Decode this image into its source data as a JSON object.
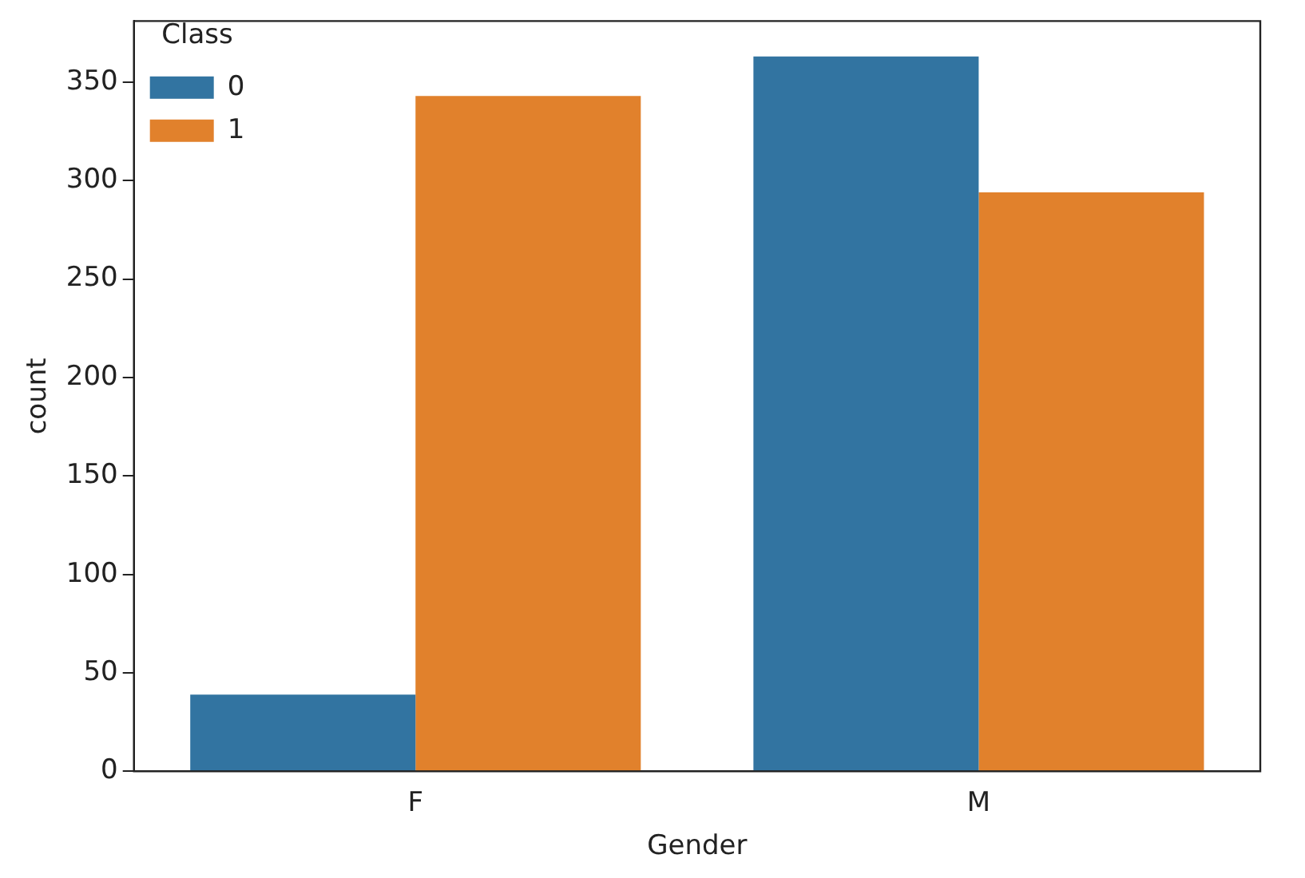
{
  "chart_data": {
    "type": "bar",
    "xlabel": "Gender",
    "ylabel": "count",
    "legend_title": "Class",
    "categories": [
      "F",
      "M"
    ],
    "series": [
      {
        "name": "0",
        "color": "#3274a1",
        "values": [
          39,
          363
        ]
      },
      {
        "name": "1",
        "color": "#e1812c",
        "values": [
          343,
          294
        ]
      }
    ],
    "ylim": [
      0,
      381
    ],
    "yticks": [
      0,
      50,
      100,
      150,
      200,
      250,
      300,
      350
    ],
    "grid": false,
    "legend": "top left"
  }
}
